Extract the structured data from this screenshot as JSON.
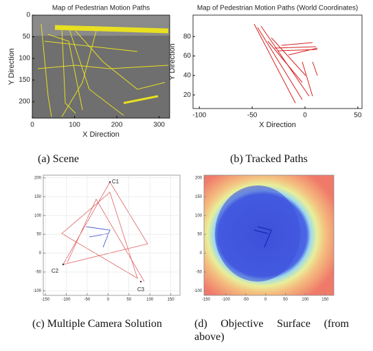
{
  "panels": [
    {
      "title": "Map of Pedestrian Motion Paths",
      "x_label": "X Direction",
      "y_label": "Y Direction",
      "xlim": [
        0,
        325
      ],
      "ylim": [
        238,
        0
      ],
      "xticks": [
        0,
        100,
        200,
        300
      ],
      "yticks": [
        0,
        50,
        100,
        150,
        200
      ],
      "caption": "(a) Scene"
    },
    {
      "title": "Map of Pedestrian Motion Paths (World Coordinates)",
      "x_label": "X Direction",
      "y_label": "Y Direction",
      "xlim": [
        -106,
        54
      ],
      "ylim": [
        6,
        102
      ],
      "xticks": [
        -100,
        -50,
        0,
        50
      ],
      "yticks": [
        20,
        40,
        60,
        80
      ],
      "caption": "(b) Tracked Paths"
    },
    {
      "xlim": [
        -155,
        172
      ],
      "ylim": [
        -112,
        207
      ],
      "xticks": [
        -150,
        -100,
        -50,
        0,
        50,
        100,
        150
      ],
      "yticks": [
        -100,
        -50,
        0,
        50,
        100,
        150,
        200
      ],
      "annotations": [
        "C1",
        "C2",
        "C3"
      ],
      "caption": "(c) Multiple Camera Solution"
    },
    {
      "xlim": [
        -155,
        172
      ],
      "ylim": [
        -112,
        207
      ],
      "xticks": [
        -150,
        -100,
        -50,
        0,
        50,
        100,
        150
      ],
      "yticks": [
        -100,
        -50,
        0,
        50,
        100,
        150,
        200
      ],
      "caption": "(d) Objective Surface (from above)"
    }
  ]
}
